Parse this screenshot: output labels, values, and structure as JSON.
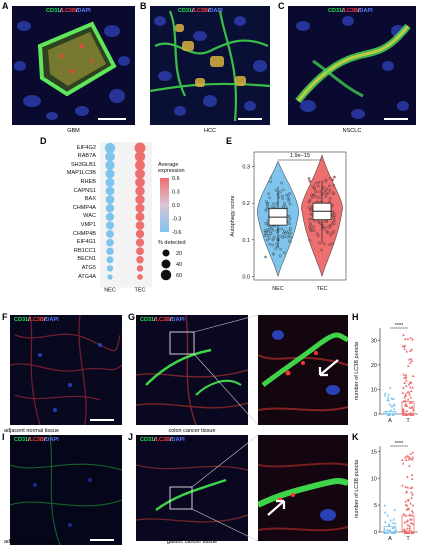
{
  "panels": {
    "A": {
      "label": "A",
      "caption": "GBM"
    },
    "B": {
      "label": "B",
      "caption": "HCC"
    },
    "C": {
      "label": "C",
      "caption": "NSCLC"
    },
    "D": {
      "label": "D"
    },
    "E": {
      "label": "E"
    },
    "F": {
      "label": "F",
      "caption": "adjacent normal tissue"
    },
    "G": {
      "label": "G",
      "caption": "colon cancer tissue"
    },
    "H": {
      "label": "H"
    },
    "I": {
      "label": "I",
      "caption": "adjacent normal tissue"
    },
    "J": {
      "label": "J",
      "caption": "gastric cancer tissue"
    },
    "K": {
      "label": "K"
    }
  },
  "stain": {
    "cd31": "CD31",
    "slash1": "/",
    "lc3b": "LC3B",
    "slash2": "/",
    "dapi": "DAPI"
  },
  "colors": {
    "nec": "#7fc4ec",
    "tec": "#ee6f6f",
    "cd31": "#22e34a",
    "lc3b": "#ff3b3b",
    "dapi": "#5b7cff"
  },
  "chart_data": [
    {
      "type": "dotplot",
      "panel": "D",
      "genes": [
        "EIF4G2",
        "RAB7A",
        "SH3GLB1",
        "MAP1LC3B",
        "RHEB",
        "CAPNS1",
        "BAX",
        "CHMP4A",
        "WAC",
        "VMP1",
        "CHMP4B",
        "EIF4G1",
        "RB1CC1",
        "BECN1",
        "ATG5",
        "ATG4A"
      ],
      "groups": [
        "NEC",
        "TEC"
      ],
      "avg_expression": {
        "NEC": [
          -0.6,
          -0.6,
          -0.6,
          -0.6,
          -0.6,
          -0.6,
          -0.6,
          -0.6,
          -0.6,
          -0.6,
          -0.6,
          -0.6,
          -0.6,
          -0.6,
          -0.6,
          -0.6
        ],
        "TEC": [
          0.6,
          0.6,
          0.6,
          0.6,
          0.6,
          0.6,
          0.6,
          0.6,
          0.6,
          0.6,
          0.6,
          0.6,
          0.6,
          0.6,
          0.6,
          0.6
        ]
      },
      "pct_detected": {
        "NEC": [
          58,
          50,
          44,
          42,
          40,
          38,
          36,
          34,
          32,
          30,
          28,
          26,
          24,
          20,
          14,
          8
        ],
        "TEC": [
          68,
          60,
          54,
          52,
          50,
          46,
          44,
          40,
          38,
          36,
          34,
          32,
          28,
          24,
          16,
          10
        ]
      },
      "legend_color_title": "Average expression",
      "legend_color_ticks": [
        "0.6",
        "0.3",
        "0.0",
        "-0.3",
        "-0.6"
      ],
      "legend_size_title": "% detected",
      "legend_size_values": [
        20,
        40,
        60
      ]
    },
    {
      "type": "violin_box",
      "panel": "E",
      "groups": [
        "NEC",
        "TEC"
      ],
      "ylabel": "Autophagy score",
      "yticks": [
        0.0,
        0.1,
        0.2,
        0.3
      ],
      "ylim": [
        -0.01,
        0.34
      ],
      "pvalue": "1.9e−15",
      "boxes": {
        "NEC": {
          "q1": 0.14,
          "median": 0.162,
          "q3": 0.185,
          "whisker_low": 0.08,
          "whisker_high": 0.245
        },
        "TEC": {
          "q1": 0.155,
          "median": 0.178,
          "q3": 0.2,
          "whisker_low": 0.09,
          "whisker_high": 0.262
        }
      }
    },
    {
      "type": "bar_scatter",
      "panel": "H",
      "ylabel": "number of LC3B puncta",
      "categories": [
        "A",
        "T"
      ],
      "values": [
        1,
        5
      ],
      "yticks": [
        0,
        10,
        20,
        30
      ],
      "ylim": [
        0,
        35
      ],
      "significance": "****"
    },
    {
      "type": "bar_scatter",
      "panel": "K",
      "ylabel": "number of LC3B puncta",
      "categories": [
        "A",
        "T"
      ],
      "values": [
        1,
        3
      ],
      "yticks": [
        0,
        5,
        10,
        15
      ],
      "ylim": [
        0,
        16
      ],
      "significance": "****"
    }
  ]
}
